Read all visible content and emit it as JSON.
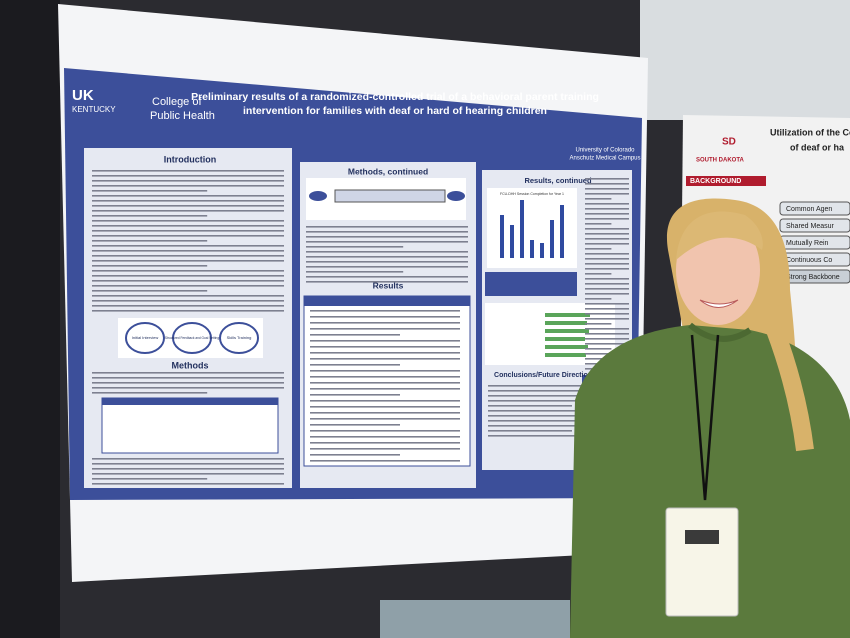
{
  "left_poster": {
    "logo_uk": "UK",
    "logo_kentucky": "KENTUCKY",
    "logo_college": [
      "College of",
      "Public Health"
    ],
    "title_lines": [
      "Preliminary results of a randomized-controlled trial of a behavioral parent training",
      "intervention for families with deaf or hard of hearing children"
    ],
    "partner": [
      "University of Colorado",
      "Anschutz Medical Campus"
    ],
    "sections": {
      "introduction": "Introduction",
      "methods": "Methods",
      "methods_continued": "Methods, continued",
      "results": "Results",
      "results_continued": "Results, continued",
      "conclusions": "Conclusions/Future Directions"
    },
    "flowchart": [
      "Initial Interview",
      "Structured Feedback and Goal Setting",
      "Skills Training"
    ],
    "chart_title": "FCU-DHH Session Completion for Year 1"
  },
  "right_poster": {
    "title_lines": [
      "Utilization of the Collective",
      "of deaf or ha"
    ],
    "university": "SOUTH DAKOTA",
    "section": "BACKGROUND",
    "boxes": [
      "Common Agen",
      "Shared Measur",
      "Mutually Rein",
      "Continuous Co",
      "Strong Backbone"
    ]
  }
}
